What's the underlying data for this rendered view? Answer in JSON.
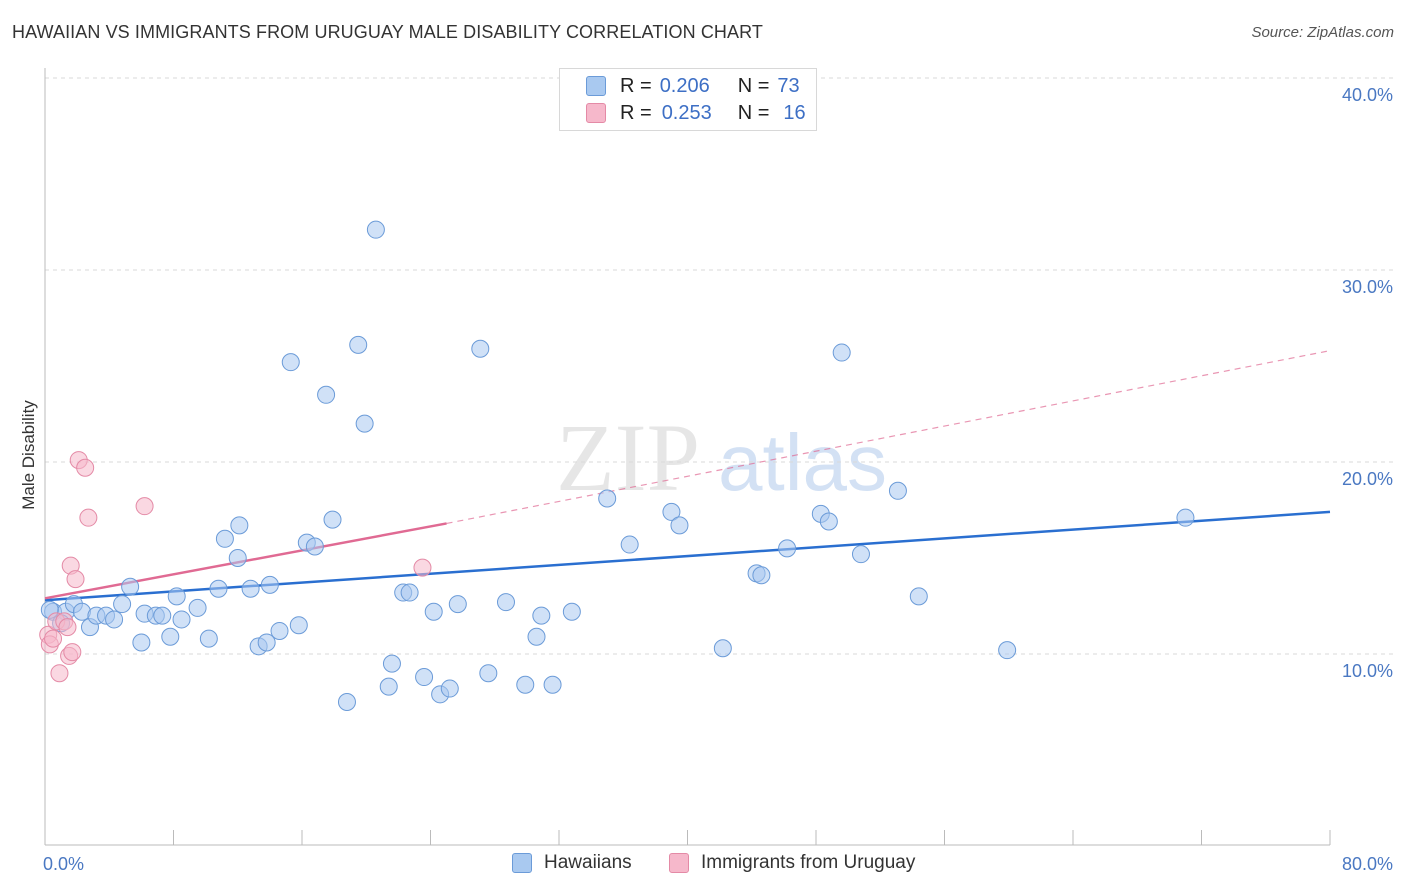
{
  "title": "HAWAIIAN VS IMMIGRANTS FROM URUGUAY MALE DISABILITY CORRELATION CHART",
  "source": "Source: ZipAtlas.com",
  "watermark": {
    "zip": "ZIP",
    "atlas": "atlas"
  },
  "legend_top": {
    "rows": [
      {
        "r_label": "R =",
        "r_value": "0.206",
        "n_label": "N =",
        "n_value": "73"
      },
      {
        "r_label": "R =",
        "r_value": "0.253",
        "n_label": "N =",
        "n_value": "16"
      }
    ]
  },
  "legend_bottom": {
    "items": [
      "Hawaiians",
      "Immigrants from Uruguay"
    ]
  },
  "colors": {
    "blue_fill": "#a9c9f0",
    "blue_stroke": "#6b9bd8",
    "blue_line": "#2a6fd0",
    "pink_fill": "#f6b8cb",
    "pink_stroke": "#e48aa6",
    "pink_line": "#e06a93",
    "tick_text": "#4a78c2",
    "grid": "#d9d9d9"
  },
  "chart_data": {
    "type": "scatter",
    "title": "HAWAIIAN VS IMMIGRANTS FROM URUGUAY MALE DISABILITY CORRELATION CHART",
    "xlabel": "",
    "ylabel": "Male Disability",
    "xlim": [
      0,
      80
    ],
    "ylim": [
      0,
      41
    ],
    "x_tick_labels": [
      "0.0%",
      "80.0%"
    ],
    "y_ticks": [
      10,
      20,
      30,
      40
    ],
    "y_tick_labels": [
      "10.0%",
      "20.0%",
      "30.0%",
      "40.0%"
    ],
    "grid": true,
    "legend_position": "top-center",
    "series": [
      {
        "name": "Hawaiians",
        "color": "#a9c9f0",
        "r": 0.206,
        "n": 73,
        "trend": {
          "x": [
            0,
            80
          ],
          "y": [
            12.8,
            17.4
          ],
          "style": "solid"
        },
        "points": [
          [
            0.5,
            12.2
          ],
          [
            1.3,
            12.2
          ],
          [
            1.8,
            12.6
          ],
          [
            2.3,
            12.2
          ],
          [
            2.8,
            11.4
          ],
          [
            3.2,
            12.0
          ],
          [
            3.8,
            12.0
          ],
          [
            4.3,
            11.8
          ],
          [
            4.8,
            12.6
          ],
          [
            5.3,
            13.5
          ],
          [
            6.0,
            10.6
          ],
          [
            6.2,
            12.1
          ],
          [
            6.9,
            12.0
          ],
          [
            7.3,
            12.0
          ],
          [
            7.8,
            10.9
          ],
          [
            8.2,
            13.0
          ],
          [
            8.5,
            11.8
          ],
          [
            9.5,
            12.4
          ],
          [
            10.2,
            10.8
          ],
          [
            10.8,
            13.4
          ],
          [
            11.2,
            16.0
          ],
          [
            12.0,
            15.0
          ],
          [
            12.1,
            16.7
          ],
          [
            12.8,
            13.4
          ],
          [
            13.3,
            10.4
          ],
          [
            13.8,
            10.6
          ],
          [
            14.0,
            13.6
          ],
          [
            14.6,
            11.2
          ],
          [
            15.3,
            25.2
          ],
          [
            15.8,
            11.5
          ],
          [
            16.3,
            15.8
          ],
          [
            16.8,
            15.6
          ],
          [
            17.5,
            23.5
          ],
          [
            17.9,
            17.0
          ],
          [
            18.8,
            7.5
          ],
          [
            19.5,
            26.1
          ],
          [
            19.9,
            22.0
          ],
          [
            20.6,
            32.1
          ],
          [
            21.4,
            8.3
          ],
          [
            21.6,
            9.5
          ],
          [
            22.3,
            13.2
          ],
          [
            22.7,
            13.2
          ],
          [
            23.6,
            8.8
          ],
          [
            24.2,
            12.2
          ],
          [
            24.6,
            7.9
          ],
          [
            25.2,
            8.2
          ],
          [
            25.7,
            12.6
          ],
          [
            27.1,
            25.9
          ],
          [
            27.6,
            9.0
          ],
          [
            28.7,
            12.7
          ],
          [
            29.9,
            8.4
          ],
          [
            30.6,
            10.9
          ],
          [
            30.9,
            12.0
          ],
          [
            31.6,
            8.4
          ],
          [
            32.8,
            12.2
          ],
          [
            35.0,
            18.1
          ],
          [
            36.4,
            15.7
          ],
          [
            39.0,
            17.4
          ],
          [
            39.5,
            16.7
          ],
          [
            42.2,
            10.3
          ],
          [
            44.3,
            14.2
          ],
          [
            44.6,
            14.1
          ],
          [
            46.2,
            15.5
          ],
          [
            48.3,
            17.3
          ],
          [
            48.8,
            16.9
          ],
          [
            49.6,
            25.7
          ],
          [
            50.8,
            15.2
          ],
          [
            53.1,
            18.5
          ],
          [
            54.4,
            13.0
          ],
          [
            59.9,
            10.2
          ],
          [
            71.0,
            17.1
          ],
          [
            0.3,
            12.3
          ],
          [
            1.0,
            11.6
          ]
        ]
      },
      {
        "name": "Immigrants from Uruguay",
        "color": "#f6b8cb",
        "r": 0.253,
        "n": 16,
        "trend": {
          "x": [
            0,
            25
          ],
          "y": [
            12.9,
            16.8
          ],
          "style": "solid",
          "extended_x": [
            25,
            80
          ],
          "extended_y": [
            16.8,
            25.8
          ],
          "extended_style": "dashed"
        },
        "points": [
          [
            0.2,
            11.0
          ],
          [
            0.3,
            10.5
          ],
          [
            0.5,
            10.8
          ],
          [
            0.7,
            11.7
          ],
          [
            0.9,
            9.0
          ],
          [
            1.2,
            11.7
          ],
          [
            1.4,
            11.4
          ],
          [
            1.5,
            9.9
          ],
          [
            1.6,
            14.6
          ],
          [
            1.7,
            10.1
          ],
          [
            1.9,
            13.9
          ],
          [
            2.1,
            20.1
          ],
          [
            2.5,
            19.7
          ],
          [
            2.7,
            17.1
          ],
          [
            6.2,
            17.7
          ],
          [
            23.5,
            14.5
          ]
        ]
      }
    ]
  }
}
